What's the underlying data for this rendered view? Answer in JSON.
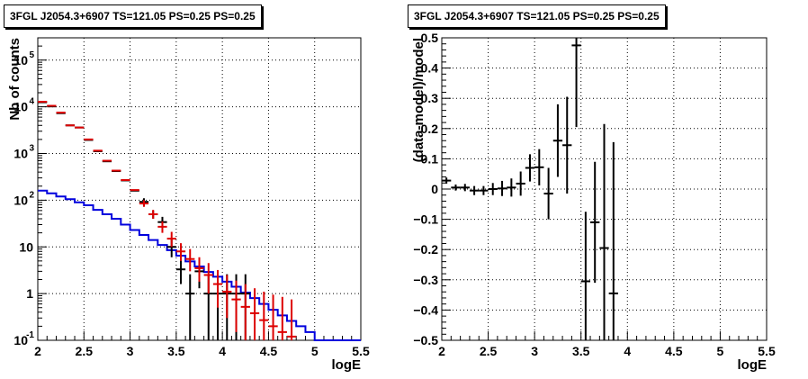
{
  "chart_data": [
    {
      "type": "step",
      "title": "3FGL J2054.3+6907 TS=121.05 PS=0.25 PS=0.25",
      "xlabel": "logE",
      "ylabel": "Nb of counts",
      "xlim": [
        2,
        5.5
      ],
      "ylim": [
        0.1,
        300000
      ],
      "yscale": "log",
      "grid": true,
      "x_ticks": [
        "2",
        "2.5",
        "3",
        "3.5",
        "4",
        "4.5",
        "5",
        "5.5"
      ],
      "y_ticks": [
        {
          "base": "10",
          "exp": "-1",
          "v": 0.1
        },
        {
          "base": "1",
          "exp": "",
          "v": 1
        },
        {
          "base": "10",
          "exp": "",
          "v": 10
        },
        {
          "base": "10",
          "exp": "2",
          "v": 100
        },
        {
          "base": "10",
          "exp": "3",
          "v": 1000
        },
        {
          "base": "10",
          "exp": "4",
          "v": 10000
        },
        {
          "base": "10",
          "exp": "5",
          "v": 100000
        }
      ],
      "colors": {
        "data": "#000000",
        "model": "#dd0000",
        "background": "#0000dd"
      },
      "series": [
        {
          "role": "data",
          "points": [
            {
              "x": 2.05,
              "y": 12500
            },
            {
              "x": 2.15,
              "y": 10200
            },
            {
              "x": 2.25,
              "y": 7300
            },
            {
              "x": 2.35,
              "y": 4000
            },
            {
              "x": 2.45,
              "y": 3600
            },
            {
              "x": 2.55,
              "y": 1950
            },
            {
              "x": 2.65,
              "y": 1120
            },
            {
              "x": 2.75,
              "y": 680
            },
            {
              "x": 2.85,
              "y": 420
            },
            {
              "x": 2.95,
              "y": 265
            },
            {
              "x": 3.05,
              "y": 160
            },
            {
              "x": 3.15,
              "y": 92,
              "lo": 75,
              "hi": 110
            },
            {
              "x": 3.25,
              "y": 50,
              "lo": 40,
              "hi": 60
            },
            {
              "x": 3.35,
              "y": 34,
              "lo": 25,
              "hi": 44
            },
            {
              "x": 3.45,
              "y": 10,
              "lo": 6,
              "hi": 15
            },
            {
              "x": 3.55,
              "y": 3.3,
              "lo": 1.6,
              "hi": 5.3
            },
            {
              "x": 3.65,
              "y": 1,
              "lo": 0.1,
              "hi": 2.6
            },
            {
              "x": 3.75,
              "y": 3,
              "lo": 1.3,
              "hi": 4.9
            },
            {
              "x": 3.85,
              "y": 1,
              "lo": 0.1,
              "hi": 2.6
            },
            {
              "x": 3.95,
              "y": 1,
              "lo": 0.1,
              "hi": 2.6
            },
            {
              "x": 4.05,
              "y": 1,
              "lo": 0.1,
              "hi": 2.6
            },
            {
              "x": 4.15,
              "y": 1,
              "lo": 0.1,
              "hi": 2.6
            },
            {
              "x": 4.25,
              "y": 1,
              "lo": 0.1,
              "hi": 2.6
            }
          ]
        },
        {
          "role": "model",
          "points": [
            {
              "x": 2.05,
              "y": 12800
            },
            {
              "x": 2.15,
              "y": 10500
            },
            {
              "x": 2.25,
              "y": 7500
            },
            {
              "x": 2.35,
              "y": 4000
            },
            {
              "x": 2.45,
              "y": 3600
            },
            {
              "x": 2.55,
              "y": 2000
            },
            {
              "x": 2.65,
              "y": 1150
            },
            {
              "x": 2.75,
              "y": 700
            },
            {
              "x": 2.85,
              "y": 430
            },
            {
              "x": 2.95,
              "y": 270
            },
            {
              "x": 3.05,
              "y": 165
            },
            {
              "x": 3.15,
              "y": 85,
              "lo": 72,
              "hi": 100
            },
            {
              "x": 3.25,
              "y": 50,
              "lo": 40,
              "hi": 62
            },
            {
              "x": 3.35,
              "y": 27,
              "lo": 20,
              "hi": 35
            },
            {
              "x": 3.45,
              "y": 15,
              "lo": 10,
              "hi": 21
            },
            {
              "x": 3.55,
              "y": 8,
              "lo": 5,
              "hi": 12
            },
            {
              "x": 3.65,
              "y": 5.5,
              "lo": 3,
              "hi": 9
            },
            {
              "x": 3.75,
              "y": 3.5,
              "lo": 1.8,
              "hi": 6
            },
            {
              "x": 3.85,
              "y": 2.5,
              "lo": 1,
              "hi": 4.5
            },
            {
              "x": 3.95,
              "y": 1.6,
              "lo": 0.5,
              "hi": 3.2
            },
            {
              "x": 4.05,
              "y": 1.1,
              "lo": 0.3,
              "hi": 2.5
            },
            {
              "x": 4.15,
              "y": 0.75,
              "lo": 0.15,
              "hi": 1.9
            },
            {
              "x": 4.25,
              "y": 0.52,
              "lo": 0.1,
              "hi": 1.6
            },
            {
              "x": 4.35,
              "y": 0.38,
              "lo": 0.1,
              "hi": 1.3
            },
            {
              "x": 4.45,
              "y": 0.27,
              "lo": 0.1,
              "hi": 1.1
            },
            {
              "x": 4.55,
              "y": 0.2,
              "lo": 0.1,
              "hi": 0.95
            },
            {
              "x": 4.65,
              "y": 0.15,
              "lo": 0.1,
              "hi": 0.85
            },
            {
              "x": 4.75,
              "y": 0.12,
              "lo": 0.1,
              "hi": 0.75
            }
          ]
        },
        {
          "role": "background",
          "bin_edges": [
            2.0,
            2.1,
            2.2,
            2.3,
            2.4,
            2.5,
            2.6,
            2.7,
            2.8,
            2.9,
            3.0,
            3.1,
            3.2,
            3.3,
            3.4,
            3.5,
            3.6,
            3.7,
            3.8,
            3.9,
            4.0,
            4.1,
            4.2,
            4.3,
            4.4,
            4.5,
            4.6,
            4.7,
            4.8,
            4.9,
            5.0,
            5.1,
            5.2,
            5.3,
            5.4,
            5.5
          ],
          "values": [
            160,
            140,
            120,
            105,
            90,
            78,
            62,
            50,
            40,
            30,
            23,
            18,
            14,
            11,
            8.5,
            6.5,
            4.9,
            3.8,
            2.9,
            2.3,
            1.8,
            1.4,
            1.05,
            0.8,
            0.6,
            0.45,
            0.34,
            0.26,
            0.2,
            0.15,
            0.1,
            0.1,
            0.1,
            0.1,
            0.1
          ]
        }
      ]
    },
    {
      "type": "errorbar",
      "title": "3FGL J2054.3+6907 TS=121.05 PS=0.25 PS=0.25",
      "xlabel": "logE",
      "ylabel": "(data-model)/model",
      "xlim": [
        2,
        5.5
      ],
      "ylim": [
        -0.5,
        0.5
      ],
      "grid": true,
      "x_ticks": [
        "2",
        "2.5",
        "3",
        "3.5",
        "4",
        "4.5",
        "5",
        "5.5"
      ],
      "y_ticks": [
        "−0.5",
        "−0.4",
        "−0.3",
        "−0.2",
        "−0.1",
        "0",
        "0.1",
        "0.2",
        "0.3",
        "0.4",
        "0.5"
      ],
      "y_tick_values": [
        -0.5,
        -0.4,
        -0.3,
        -0.2,
        -0.1,
        0,
        0.1,
        0.2,
        0.3,
        0.4,
        0.5
      ],
      "points": [
        {
          "x": 2.05,
          "y": 0.028,
          "err": 0.01
        },
        {
          "x": 2.15,
          "y": 0.005,
          "err": 0.01
        },
        {
          "x": 2.25,
          "y": 0.005,
          "err": 0.012
        },
        {
          "x": 2.35,
          "y": -0.005,
          "err": 0.015
        },
        {
          "x": 2.45,
          "y": -0.005,
          "err": 0.015
        },
        {
          "x": 2.55,
          "y": 0.0,
          "err": 0.02
        },
        {
          "x": 2.65,
          "y": 0.002,
          "err": 0.025
        },
        {
          "x": 2.75,
          "y": 0.005,
          "err": 0.03
        },
        {
          "x": 2.85,
          "y": 0.018,
          "err": 0.04
        },
        {
          "x": 2.95,
          "y": 0.07,
          "err": 0.045
        },
        {
          "x": 3.05,
          "y": 0.072,
          "err": 0.06
        },
        {
          "x": 3.15,
          "y": -0.015,
          "err": 0.085
        },
        {
          "x": 3.25,
          "y": 0.16,
          "err": 0.12
        },
        {
          "x": 3.35,
          "y": 0.145,
          "err": 0.16
        },
        {
          "x": 3.45,
          "y": 0.475,
          "err": 0.27
        },
        {
          "x": 3.55,
          "y": -0.305,
          "err": 0.23
        },
        {
          "x": 3.65,
          "y": -0.11,
          "err": 0.2
        },
        {
          "x": 3.75,
          "y": -0.195,
          "err": 0.41
        },
        {
          "x": 3.85,
          "y": -0.345,
          "err": 0.5
        }
      ]
    }
  ]
}
